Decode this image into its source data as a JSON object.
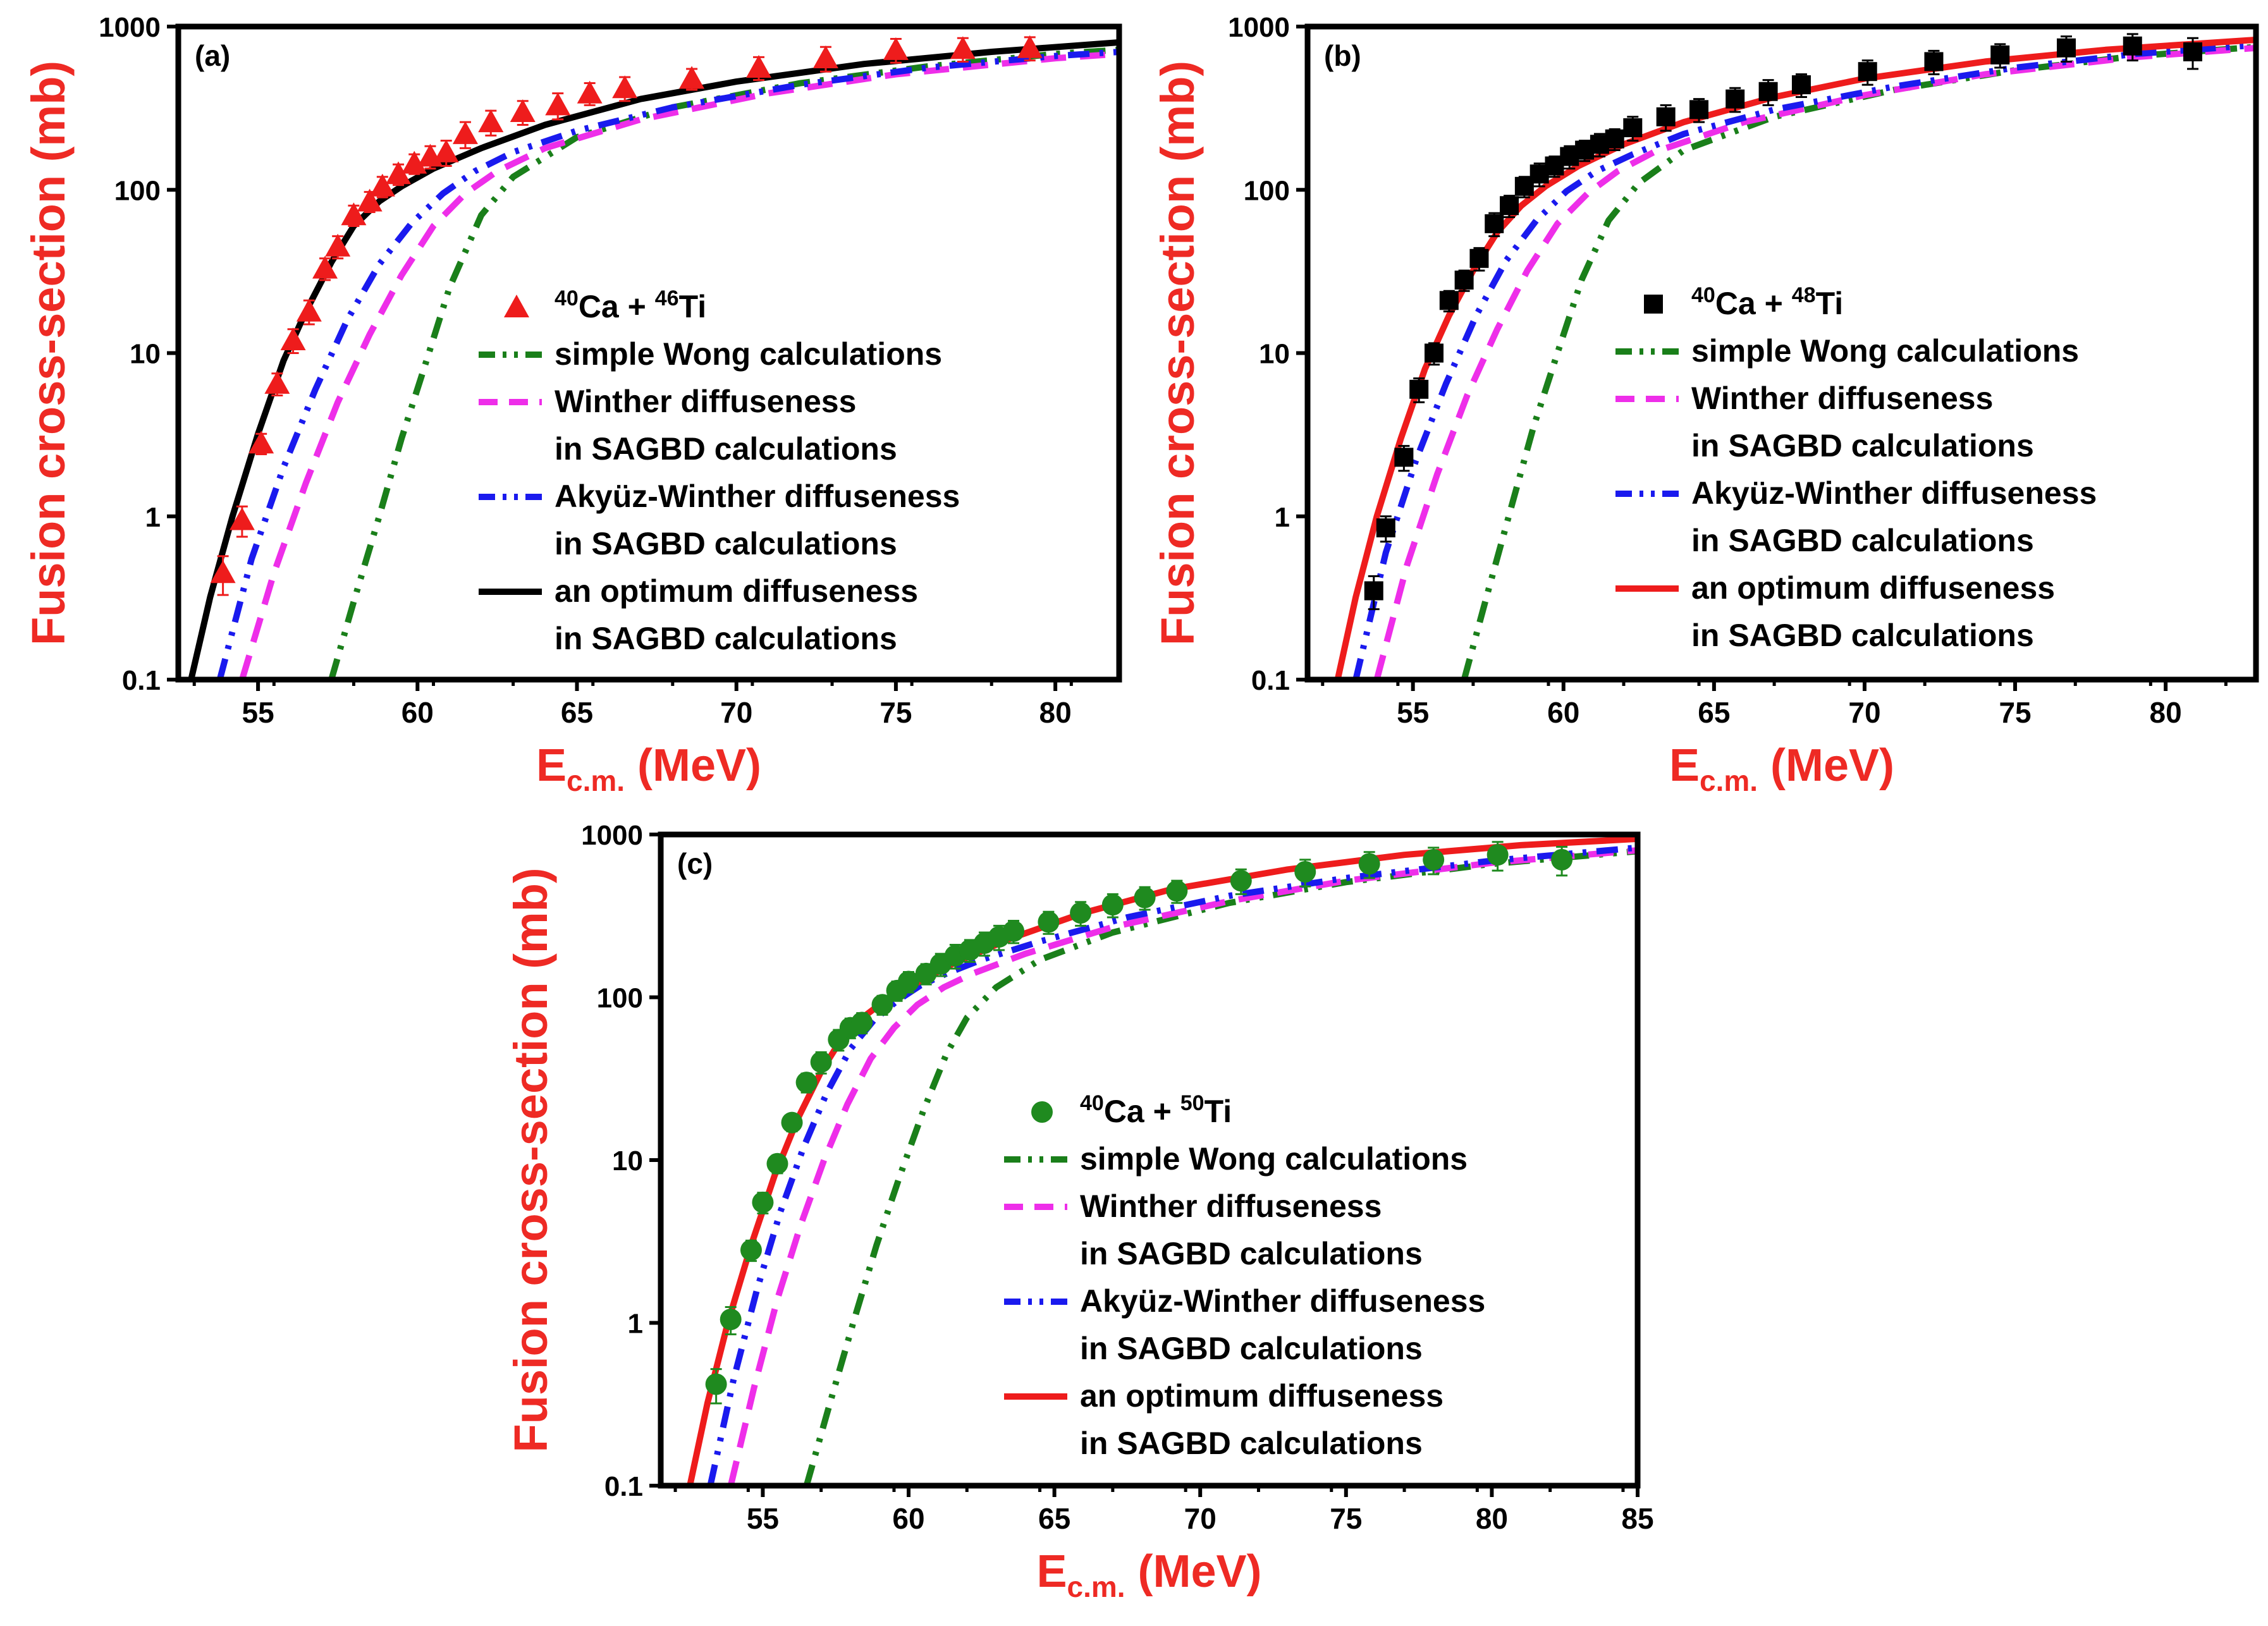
{
  "chart_data": [
    {
      "type": "scatter",
      "panel_label": "(a)",
      "xlabel": {
        "main": "E",
        "sub": "c.m.",
        "tail": " (MeV)"
      },
      "ylabel": "Fusion cross-section (mb)",
      "xlim": [
        52.5,
        82
      ],
      "ylim": [
        0.1,
        1000
      ],
      "yscale": "log",
      "xticks": [
        55,
        60,
        65,
        70,
        75,
        80
      ],
      "yticks": [
        0.1,
        1,
        10,
        100,
        1000
      ],
      "ytick_labels": [
        "0.1",
        "1",
        "10",
        "100",
        "1000"
      ],
      "legend_position": "center-right",
      "experiment": {
        "label_parts": [
          {
            "t": "40",
            "sup": true
          },
          {
            "t": "Ca + ",
            "sup": false
          },
          {
            "t": "46",
            "sup": true
          },
          {
            "t": "Ti",
            "sup": false
          }
        ],
        "marker": "triangle",
        "color": "#ee1c1c",
        "x": [
          53.9,
          54.5,
          55.1,
          55.6,
          56.1,
          56.6,
          57.1,
          57.5,
          58.0,
          58.5,
          58.9,
          59.4,
          59.9,
          60.4,
          60.9,
          61.5,
          62.3,
          63.3,
          64.4,
          65.4,
          66.5,
          68.6,
          70.7,
          72.8,
          75.0,
          77.1,
          79.2
        ],
        "y": [
          0.45,
          0.95,
          2.8,
          6.5,
          12,
          18,
          33,
          45,
          70,
          85,
          105,
          125,
          145,
          160,
          170,
          220,
          260,
          300,
          330,
          390,
          420,
          480,
          560,
          640,
          720,
          730,
          740
        ],
        "err": [
          0.12,
          0.2,
          0.4,
          1.0,
          2,
          3,
          5,
          7,
          10,
          12,
          15,
          18,
          20,
          25,
          30,
          40,
          45,
          50,
          60,
          60,
          70,
          70,
          90,
          110,
          120,
          120,
          120
        ]
      },
      "curves": [
        {
          "name": "simple Wong calculations",
          "color": "#1a7f1a",
          "dash": "dashdotdot",
          "x": [
            57.3,
            58.0,
            58.8,
            59.5,
            60.2,
            61.0,
            62.0,
            63.0,
            65.0,
            68.0,
            72.0,
            76.0,
            80.0,
            82.0
          ],
          "y": [
            0.1,
            0.3,
            1.0,
            3.0,
            8.0,
            25,
            70,
            120,
            210,
            320,
            450,
            570,
            680,
            720
          ]
        },
        {
          "name": "Winther diffuseness in SAGBD calculations",
          "color": "#ee2ee9",
          "dash": "dash",
          "x": [
            54.5,
            55.5,
            56.5,
            57.5,
            58.5,
            59.5,
            60.5,
            61.5,
            62.5,
            64.0,
            67.0,
            71.0,
            75.0,
            80.0,
            82.0
          ],
          "y": [
            0.1,
            0.45,
            1.6,
            5.0,
            13,
            30,
            60,
            95,
            130,
            180,
            270,
            390,
            510,
            640,
            680
          ]
        },
        {
          "name": "Akyüz-Winther diffuseness in SAGBD calculations",
          "color": "#1a1aee",
          "dash": "dashdotdot",
          "x": [
            53.8,
            54.8,
            55.8,
            56.8,
            57.8,
            58.8,
            59.8,
            60.8,
            61.8,
            63.0,
            65.0,
            68.0,
            72.0,
            76.0,
            80.0,
            82.0
          ],
          "y": [
            0.1,
            0.55,
            2.0,
            6.0,
            16,
            35,
            62,
            95,
            130,
            170,
            230,
            320,
            440,
            560,
            660,
            700
          ]
        },
        {
          "name": "an optimum diffuseness in SAGBD calculations",
          "color": "#000000",
          "dash": "solid",
          "x": [
            52.9,
            53.5,
            54.2,
            55.0,
            55.8,
            56.5,
            57.3,
            58.0,
            58.8,
            59.5,
            60.5,
            62.0,
            64.0,
            67.0,
            70.0,
            74.0,
            78.0,
            82.0
          ],
          "y": [
            0.1,
            0.32,
            1.0,
            3.2,
            9.0,
            18,
            36,
            60,
            85,
            105,
            135,
            180,
            250,
            360,
            460,
            590,
            700,
            800
          ]
        }
      ]
    },
    {
      "type": "scatter",
      "panel_label": "(b)",
      "xlabel": {
        "main": "E",
        "sub": "c.m.",
        "tail": " (MeV)"
      },
      "ylabel": "Fusion cross-section (mb)",
      "xlim": [
        51.5,
        83
      ],
      "ylim": [
        0.1,
        1000
      ],
      "yscale": "log",
      "xticks": [
        55,
        60,
        65,
        70,
        75,
        80
      ],
      "yticks": [
        0.1,
        1,
        10,
        100,
        1000
      ],
      "ytick_labels": [
        "0.1",
        "1",
        "10",
        "100",
        "1000"
      ],
      "legend_position": "center-right",
      "experiment": {
        "label_parts": [
          {
            "t": "40",
            "sup": true
          },
          {
            "t": "Ca + ",
            "sup": false
          },
          {
            "t": "48",
            "sup": true
          },
          {
            "t": "Ti",
            "sup": false
          }
        ],
        "marker": "square",
        "color": "#000000",
        "x": [
          53.7,
          54.1,
          54.7,
          55.2,
          55.7,
          56.2,
          56.7,
          57.2,
          57.7,
          58.2,
          58.7,
          59.2,
          59.7,
          60.2,
          60.7,
          61.2,
          61.7,
          62.3,
          63.4,
          64.5,
          65.7,
          66.8,
          67.9,
          70.1,
          72.3,
          74.5,
          76.7,
          78.9,
          80.9
        ],
        "y": [
          0.35,
          0.85,
          2.3,
          6.0,
          10,
          21,
          28,
          38,
          62,
          80,
          105,
          125,
          140,
          160,
          175,
          190,
          205,
          240,
          280,
          310,
          360,
          400,
          440,
          530,
          610,
          670,
          740,
          760,
          700
        ],
        "err": [
          0.08,
          0.15,
          0.4,
          1.0,
          1.5,
          3,
          4,
          6,
          10,
          12,
          15,
          20,
          20,
          25,
          25,
          30,
          30,
          40,
          50,
          50,
          60,
          70,
          70,
          90,
          100,
          110,
          130,
          140,
          150
        ]
      },
      "curves": [
        {
          "name": "simple Wong calculations",
          "color": "#1a7f1a",
          "dash": "dashdotdot",
          "x": [
            56.7,
            57.5,
            58.3,
            59.0,
            59.8,
            60.6,
            61.5,
            62.5,
            64.0,
            67.0,
            71.0,
            75.0,
            79.0,
            83.0
          ],
          "y": [
            0.1,
            0.35,
            1.2,
            3.5,
            10,
            28,
            65,
            110,
            175,
            280,
            410,
            540,
            660,
            750
          ]
        },
        {
          "name": "Winther diffuseness in SAGBD calculations",
          "color": "#ee2ee9",
          "dash": "dash",
          "x": [
            53.8,
            54.8,
            55.8,
            56.8,
            57.8,
            58.8,
            59.8,
            60.8,
            61.8,
            63.0,
            66.0,
            70.0,
            74.0,
            79.0,
            83.0
          ],
          "y": [
            0.1,
            0.5,
            1.8,
            5.5,
            14,
            32,
            62,
            95,
            130,
            170,
            260,
            380,
            510,
            650,
            740
          ]
        },
        {
          "name": "Akyüz-Winther diffuseness in SAGBD calculations",
          "color": "#1a1aee",
          "dash": "dashdotdot",
          "x": [
            53.1,
            54.1,
            55.1,
            56.1,
            57.1,
            58.1,
            59.1,
            60.1,
            61.1,
            62.3,
            64.0,
            67.0,
            71.0,
            75.0,
            79.0,
            83.0
          ],
          "y": [
            0.1,
            0.6,
            2.2,
            6.5,
            17,
            37,
            65,
            98,
            130,
            165,
            220,
            310,
            430,
            560,
            680,
            770
          ]
        },
        {
          "name": "an optimum diffuseness in SAGBD calculations",
          "color": "#ee1c1c",
          "dash": "solid",
          "x": [
            52.5,
            53.1,
            53.8,
            54.6,
            55.4,
            56.2,
            57.0,
            57.8,
            58.6,
            59.4,
            60.5,
            62.0,
            64.0,
            67.0,
            70.0,
            74.0,
            78.0,
            83.0
          ],
          "y": [
            0.1,
            0.32,
            1.0,
            3.0,
            8.0,
            17,
            32,
            55,
            80,
            105,
            140,
            190,
            260,
            370,
            480,
            610,
            720,
            830
          ]
        }
      ]
    },
    {
      "type": "scatter",
      "panel_label": "(c)",
      "xlabel": {
        "main": "E",
        "sub": "c.m.",
        "tail": " (MeV)"
      },
      "ylabel": "Fusion cross-section (mb)",
      "xlim": [
        51.5,
        85
      ],
      "ylim": [
        0.1,
        1000
      ],
      "yscale": "log",
      "xticks": [
        55,
        60,
        65,
        70,
        75,
        80,
        85
      ],
      "yticks": [
        0.1,
        1,
        10,
        100,
        1000
      ],
      "ytick_labels": [
        "0.1",
        "1",
        "10",
        "100",
        "1000"
      ],
      "legend_position": "center-right",
      "experiment": {
        "label_parts": [
          {
            "t": "40",
            "sup": true
          },
          {
            "t": "Ca + ",
            "sup": false
          },
          {
            "t": "50",
            "sup": true
          },
          {
            "t": "Ti",
            "sup": false
          }
        ],
        "marker": "circle",
        "color": "#1f8a1f",
        "x": [
          53.4,
          53.9,
          54.6,
          55.0,
          55.5,
          56.0,
          56.5,
          57.0,
          57.6,
          58.0,
          58.4,
          59.1,
          59.6,
          60.0,
          60.6,
          61.1,
          61.6,
          62.1,
          62.6,
          63.1,
          63.6,
          64.8,
          65.9,
          67.0,
          68.1,
          69.2,
          71.4,
          73.6,
          75.8,
          78.0,
          80.2,
          82.4
        ],
        "y": [
          0.42,
          1.05,
          2.8,
          5.5,
          9.5,
          17,
          30,
          40,
          55,
          65,
          70,
          90,
          110,
          125,
          140,
          160,
          180,
          195,
          215,
          235,
          255,
          290,
          330,
          370,
          410,
          450,
          520,
          590,
          660,
          700,
          750,
          700
        ],
        "err": [
          0.1,
          0.2,
          0.4,
          0.8,
          1.2,
          2,
          4,
          6,
          8,
          9,
          10,
          12,
          15,
          18,
          20,
          25,
          30,
          30,
          35,
          40,
          40,
          45,
          55,
          60,
          65,
          70,
          90,
          110,
          120,
          130,
          150,
          140
        ]
      },
      "curves": [
        {
          "name": "simple Wong calculations",
          "color": "#1a7f1a",
          "dash": "dashdotdot",
          "x": [
            56.5,
            57.3,
            58.1,
            58.9,
            59.7,
            60.5,
            61.3,
            62.0,
            63.0,
            64.5,
            67.0,
            71.0,
            75.0,
            80.0,
            85.0
          ],
          "y": [
            0.1,
            0.32,
            1.0,
            3.0,
            8.0,
            20,
            45,
            75,
            115,
            170,
            250,
            380,
            510,
            660,
            790
          ]
        },
        {
          "name": "Winther diffuseness in SAGBD calculations",
          "color": "#ee2ee9",
          "dash": "dash",
          "x": [
            53.9,
            54.7,
            55.5,
            56.3,
            57.1,
            57.9,
            58.7,
            59.5,
            60.3,
            61.2,
            62.2,
            64.0,
            67.0,
            71.0,
            75.0,
            80.0,
            85.0
          ],
          "y": [
            0.1,
            0.4,
            1.4,
            4.0,
            10,
            22,
            42,
            65,
            90,
            115,
            140,
            185,
            270,
            390,
            520,
            670,
            800
          ]
        },
        {
          "name": "Akyüz-Winther diffuseness in SAGBD calculations",
          "color": "#1a1aee",
          "dash": "dashdotdot",
          "x": [
            53.2,
            54.0,
            54.8,
            55.6,
            56.4,
            57.2,
            58.0,
            58.8,
            59.6,
            60.4,
            61.3,
            62.5,
            64.5,
            67.5,
            71.0,
            75.0,
            80.0,
            85.0
          ],
          "y": [
            0.1,
            0.45,
            1.6,
            4.8,
            12,
            26,
            48,
            72,
            95,
            118,
            140,
            170,
            220,
            310,
            420,
            540,
            690,
            830
          ]
        },
        {
          "name": "an optimum diffuseness in SAGBD calculations",
          "color": "#ee1c1c",
          "dash": "solid",
          "x": [
            52.5,
            53.1,
            53.8,
            54.6,
            55.4,
            56.2,
            57.0,
            57.6,
            58.2,
            59.0,
            60.0,
            61.5,
            63.5,
            66.0,
            69.0,
            73.0,
            77.0,
            81.0,
            85.0
          ],
          "y": [
            0.1,
            0.32,
            1.0,
            3.0,
            8.0,
            18,
            35,
            52,
            70,
            90,
            115,
            160,
            230,
            330,
            460,
            610,
            750,
            860,
            940
          ]
        }
      ]
    }
  ]
}
